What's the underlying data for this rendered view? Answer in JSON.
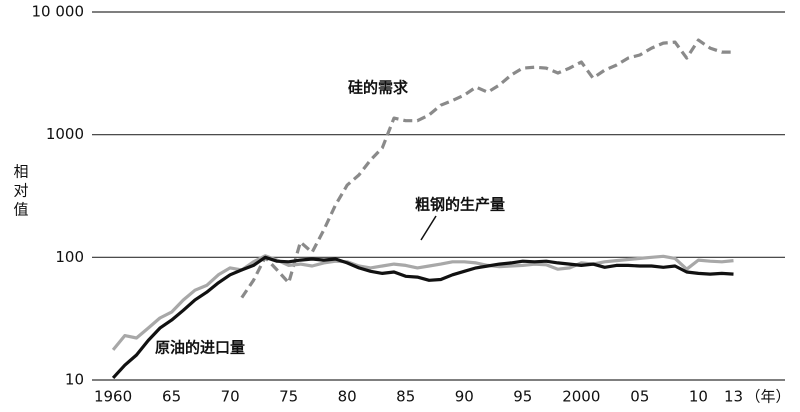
{
  "chart_data": {
    "type": "line",
    "y_label": "相对值",
    "x_label": "（年）",
    "log_scale_y": true,
    "grid": true,
    "xlim": [
      1958.2,
      2017.4
    ],
    "ylim": [
      10,
      10000
    ],
    "yticks": [
      10,
      100,
      1000,
      {
        "value": 10000,
        "label": "10 000"
      }
    ],
    "xticks": [
      1960,
      {
        "value": 1965,
        "label": "65"
      },
      {
        "value": 1970,
        "label": "70"
      },
      {
        "value": 1975,
        "label": "75"
      },
      {
        "value": 1980,
        "label": "80"
      },
      {
        "value": 1985,
        "label": "85"
      },
      {
        "value": 1990,
        "label": "90"
      },
      {
        "value": 1995,
        "label": "95"
      },
      2000,
      {
        "value": 2005,
        "label": "05"
      },
      {
        "value": 2010,
        "label": "10"
      },
      {
        "value": 2013,
        "label": "13"
      }
    ],
    "x": [
      1960,
      1961,
      1962,
      1963,
      1964,
      1965,
      1966,
      1967,
      1968,
      1969,
      1970,
      1971,
      1972,
      1973,
      1974,
      1975,
      1976,
      1977,
      1978,
      1979,
      1980,
      1981,
      1982,
      1983,
      1984,
      1985,
      1986,
      1987,
      1988,
      1989,
      1990,
      1991,
      1992,
      1993,
      1994,
      1995,
      1996,
      1997,
      1998,
      1999,
      2000,
      2001,
      2002,
      2003,
      2004,
      2005,
      2006,
      2007,
      2008,
      2009,
      2010,
      2011,
      2012,
      2013
    ],
    "series": [
      {
        "name": "硅的需求",
        "color": "#8a8a8a",
        "dashed": true,
        "values": [
          null,
          null,
          null,
          null,
          null,
          null,
          null,
          null,
          null,
          null,
          null,
          47,
          65,
          100,
          79,
          62,
          133,
          110,
          167,
          267,
          388,
          469,
          621,
          780,
          1365,
          1300,
          1300,
          1450,
          1740,
          1900,
          2100,
          2440,
          2220,
          2540,
          3060,
          3490,
          3550,
          3490,
          3180,
          3490,
          3910,
          2890,
          3360,
          3690,
          4210,
          4460,
          5080,
          5580,
          5680,
          4210,
          5900,
          5080,
          4710,
          4710
        ]
      },
      {
        "name": "粗钢的生产量",
        "color": "#a8a8a8",
        "dashed": false,
        "values": [
          17.6,
          23,
          22,
          26.5,
          32,
          35.8,
          44.9,
          54,
          59,
          72,
          82,
          79,
          92,
          103,
          95,
          86,
          88,
          85,
          90,
          93,
          92,
          85,
          82,
          85,
          88,
          86,
          82,
          85,
          88,
          92,
          92,
          90,
          86,
          84,
          85,
          86,
          88,
          87,
          80,
          82,
          90,
          88,
          92,
          94,
          96,
          98,
          100,
          102,
          98,
          80,
          95,
          93,
          92,
          94
        ]
      },
      {
        "name": "原油的进口量",
        "color": "#111111",
        "dashed": false,
        "values": [
          10.4,
          13.2,
          16,
          21,
          26.5,
          30.8,
          37,
          45,
          52,
          62,
          72,
          79,
          86,
          100,
          93,
          92,
          95,
          97,
          95,
          97,
          90,
          82,
          77,
          74,
          76,
          70,
          69,
          65,
          66,
          72,
          77,
          82,
          85,
          88,
          90,
          93,
          92,
          93,
          90,
          88,
          86,
          88,
          83,
          86,
          86,
          85,
          85,
          83,
          85,
          76,
          74,
          73,
          74,
          73
        ]
      }
    ]
  }
}
